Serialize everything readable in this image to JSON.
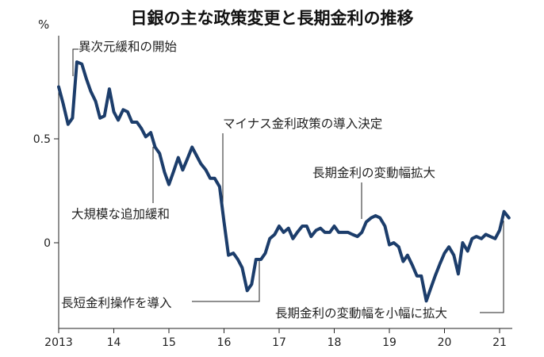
{
  "colors": {
    "series": "#1c3d6b",
    "axis": "#222222",
    "text": "#222222",
    "background": "#ffffff"
  },
  "chart_data": {
    "type": "line",
    "title": "日銀の主な政策変更と長期金利の推移",
    "ylabel": "%",
    "xlabel": "",
    "ylim": [
      -0.4,
      0.95
    ],
    "xlim": [
      2013.0,
      2021.35
    ],
    "grid": false,
    "y_ticks": [
      {
        "value": 0.5,
        "label": "0.5"
      },
      {
        "value": 0,
        "label": "0"
      }
    ],
    "x_ticks": [
      {
        "value": 2013,
        "label": "2013"
      },
      {
        "value": 2014,
        "label": "14"
      },
      {
        "value": 2015,
        "label": "15"
      },
      {
        "value": 2016,
        "label": "16"
      },
      {
        "value": 2017,
        "label": "17"
      },
      {
        "value": 2018,
        "label": "18"
      },
      {
        "value": 2019,
        "label": "19"
      },
      {
        "value": 2020,
        "label": "20"
      },
      {
        "value": 2021,
        "label": "21"
      }
    ],
    "series": [
      {
        "x": [
          2013.0,
          2013.08,
          2013.17,
          2013.25,
          2013.33,
          2013.42,
          2013.5,
          2013.58,
          2013.67,
          2013.75,
          2013.83,
          2013.92,
          2014.0,
          2014.08,
          2014.17,
          2014.25,
          2014.33,
          2014.42,
          2014.5,
          2014.58,
          2014.67,
          2014.75,
          2014.83,
          2014.92,
          2015.0,
          2015.08,
          2015.17,
          2015.25,
          2015.33,
          2015.42,
          2015.5,
          2015.58,
          2015.67,
          2015.75,
          2015.83,
          2015.92,
          2016.0,
          2016.08,
          2016.17,
          2016.25,
          2016.33,
          2016.42,
          2016.5,
          2016.58,
          2016.67,
          2016.75,
          2016.83,
          2016.92,
          2017.0,
          2017.08,
          2017.17,
          2017.25,
          2017.33,
          2017.42,
          2017.5,
          2017.58,
          2017.67,
          2017.75,
          2017.83,
          2017.92,
          2018.0,
          2018.08,
          2018.17,
          2018.25,
          2018.33,
          2018.42,
          2018.5,
          2018.58,
          2018.67,
          2018.75,
          2018.83,
          2018.92,
          2019.0,
          2019.08,
          2019.17,
          2019.25,
          2019.33,
          2019.42,
          2019.5,
          2019.58,
          2019.67,
          2019.75,
          2019.83,
          2019.92,
          2020.0,
          2020.08,
          2020.17,
          2020.25,
          2020.33,
          2020.42,
          2020.5,
          2020.58,
          2020.67,
          2020.75,
          2020.83,
          2020.92,
          2021.0,
          2021.08,
          2021.17
        ],
        "y": [
          0.75,
          0.67,
          0.57,
          0.6,
          0.87,
          0.86,
          0.79,
          0.73,
          0.68,
          0.6,
          0.61,
          0.74,
          0.63,
          0.59,
          0.64,
          0.63,
          0.58,
          0.58,
          0.55,
          0.51,
          0.53,
          0.46,
          0.43,
          0.34,
          0.28,
          0.34,
          0.41,
          0.35,
          0.4,
          0.46,
          0.42,
          0.38,
          0.35,
          0.31,
          0.31,
          0.27,
          0.1,
          -0.06,
          -0.05,
          -0.08,
          -0.12,
          -0.23,
          -0.2,
          -0.08,
          -0.08,
          -0.05,
          0.02,
          0.04,
          0.08,
          0.05,
          0.07,
          0.02,
          0.05,
          0.08,
          0.08,
          0.03,
          0.06,
          0.07,
          0.05,
          0.05,
          0.08,
          0.05,
          0.05,
          0.05,
          0.04,
          0.03,
          0.05,
          0.1,
          0.12,
          0.13,
          0.12,
          0.08,
          -0.01,
          0.0,
          -0.02,
          -0.09,
          -0.06,
          -0.11,
          -0.16,
          -0.16,
          -0.28,
          -0.22,
          -0.16,
          -0.1,
          -0.05,
          -0.02,
          -0.06,
          -0.15,
          0.0,
          -0.04,
          0.02,
          0.03,
          0.02,
          0.04,
          0.03,
          0.02,
          0.06,
          0.15,
          0.12
        ]
      }
    ],
    "annotations": [
      {
        "text": "異次元緩和の開始"
      },
      {
        "text": "大規模な追加緩和"
      },
      {
        "text": "マイナス金利政策の導入決定"
      },
      {
        "text": "長短金利操作を導入"
      },
      {
        "text": "長期金利の変動幅拡大"
      },
      {
        "text": "長期金利の変動幅を小幅に拡大"
      }
    ]
  }
}
